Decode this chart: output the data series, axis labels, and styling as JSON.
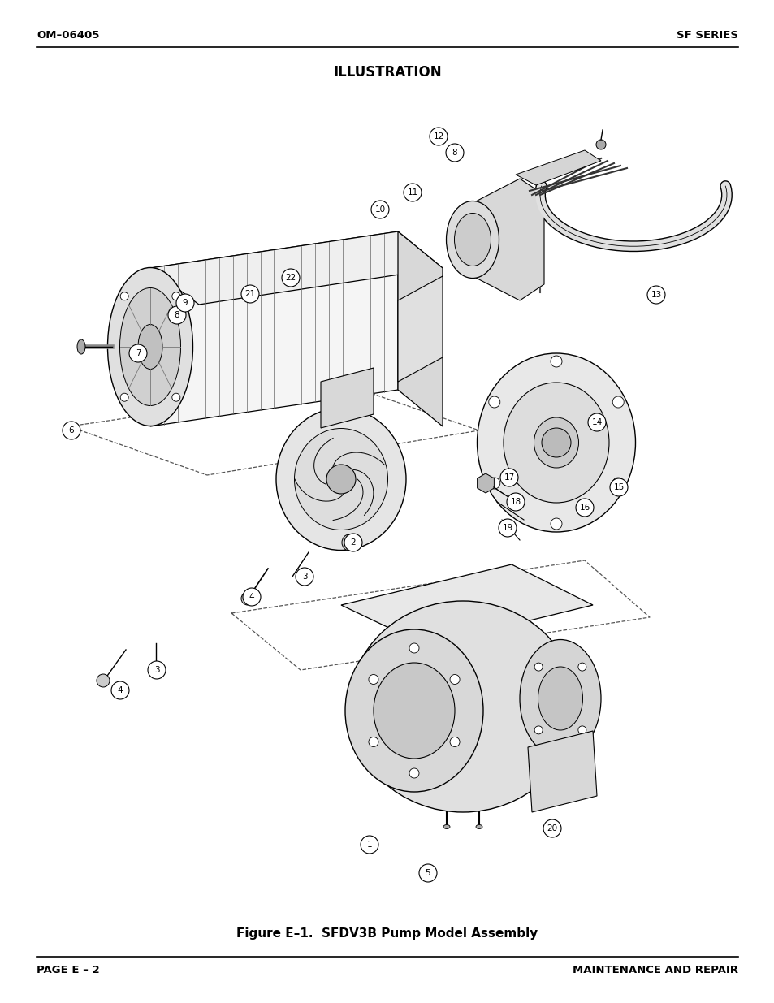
{
  "title": "ILLUSTRATION",
  "figure_caption": "Figure E–1.  SFDV3B Pump Model Assembly",
  "header_left": "OM–06405",
  "header_right": "SF SERIES",
  "footer_left": "PAGE E – 2",
  "footer_right": "MAINTENANCE AND REPAIR",
  "bg_color": "#ffffff",
  "text_color": "#000000",
  "header_fontsize": 9.5,
  "title_fontsize": 12,
  "caption_fontsize": 11,
  "footer_fontsize": 9.5,
  "fig_width": 9.54,
  "fig_height": 12.35,
  "dpi": 100
}
